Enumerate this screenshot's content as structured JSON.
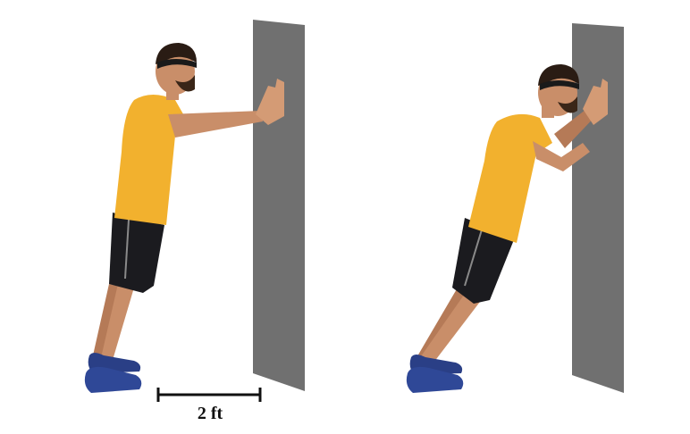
{
  "figure": {
    "distance_label": "2 ft",
    "colors": {
      "wall": "#707070",
      "shirt": "#F2B12E",
      "shorts": "#1b1b1f",
      "skin": "#c98e69",
      "hair": "#2a1c14",
      "shoe": "#2a3f86",
      "measure_line": "#111111"
    }
  }
}
